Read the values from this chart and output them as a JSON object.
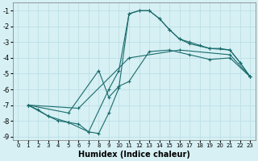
{
  "xlabel": "Humidex (Indice chaleur)",
  "bg_color": "#d6f0f4",
  "grid_color": "#b8dde4",
  "line_color": "#1a6b6b",
  "xlim": [
    -0.5,
    23.5
  ],
  "ylim": [
    -9.2,
    -0.5
  ],
  "yticks": [
    -1,
    -2,
    -3,
    -4,
    -5,
    -6,
    -7,
    -8,
    -9
  ],
  "xticks": [
    0,
    1,
    2,
    3,
    4,
    5,
    6,
    7,
    8,
    9,
    10,
    11,
    12,
    13,
    14,
    15,
    16,
    17,
    18,
    19,
    20,
    21,
    22,
    23
  ],
  "curve1_x": [
    1,
    2,
    3,
    4,
    5,
    6,
    7,
    8,
    9,
    10,
    11,
    12,
    13,
    14,
    15,
    16,
    17,
    18,
    19,
    20,
    21,
    22,
    23
  ],
  "curve1_y": [
    -7.0,
    -7.3,
    -7.7,
    -8.0,
    -8.1,
    -8.2,
    -8.7,
    -8.8,
    -7.5,
    -5.9,
    -1.2,
    -1.0,
    -1.0,
    -1.5,
    -2.2,
    -2.8,
    -3.0,
    -3.2,
    -3.4,
    -3.4,
    -3.5,
    -4.3,
    -5.2
  ],
  "curve2_x": [
    1,
    3,
    5,
    7,
    9,
    10,
    11,
    12,
    13,
    14,
    15,
    16,
    17,
    19,
    21,
    22,
    23
  ],
  "curve2_y": [
    -7.0,
    -7.7,
    -8.1,
    -8.7,
    -6.0,
    -4.8,
    -1.2,
    -1.0,
    -1.0,
    -1.5,
    -2.2,
    -2.8,
    -3.1,
    -3.4,
    -3.5,
    -4.3,
    -5.2
  ],
  "curve3_x": [
    1,
    5,
    8,
    9,
    10,
    11,
    13,
    15,
    17,
    19,
    21,
    23
  ],
  "curve3_y": [
    -7.0,
    -7.5,
    -4.8,
    -6.5,
    -5.8,
    -5.5,
    -3.6,
    -3.5,
    -3.8,
    -4.1,
    -4.0,
    -5.2
  ],
  "curve4_x": [
    1,
    6,
    11,
    16,
    21,
    23
  ],
  "curve4_y": [
    -7.0,
    -7.2,
    -4.0,
    -3.5,
    -3.8,
    -5.2
  ]
}
